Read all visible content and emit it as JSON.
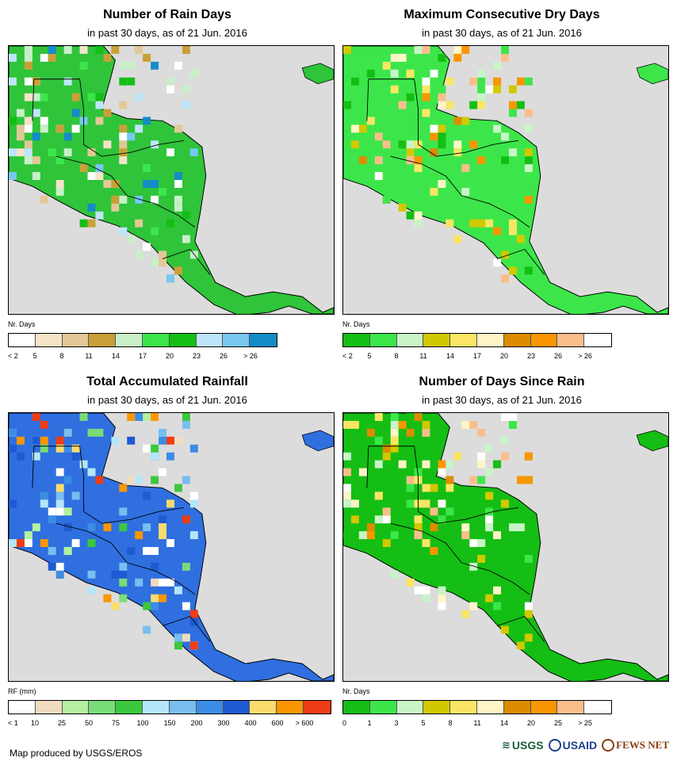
{
  "panels": [
    {
      "title": "Number of Rain Days",
      "subtitle": "in past 30 days, as of 21 Jun. 2016",
      "legend_unit": "Nr. Days",
      "legend_colors": [
        "#ffffff",
        "#f5e4c8",
        "#e2c896",
        "#c9a038",
        "#c8f0c8",
        "#3ce64a",
        "#14be14",
        "#bee6fa",
        "#78c8f0",
        "#148cc8"
      ],
      "legend_ticks": [
        "< 2",
        "5",
        "8",
        "11",
        "14",
        "17",
        "20",
        "23",
        "26",
        "> 26"
      ],
      "land_color": "#2fc43a"
    },
    {
      "title": "Maximum Consecutive Dry Days",
      "subtitle": "in past 30 days, as of 21 Jun. 2016",
      "legend_unit": "Nr. Days",
      "legend_colors": [
        "#14be14",
        "#3ce64a",
        "#c8f5c8",
        "#d2c800",
        "#fae664",
        "#fff5c8",
        "#dc8c00",
        "#fa9600",
        "#fabe8c",
        "#ffffff"
      ],
      "legend_ticks": [
        "< 2",
        "5",
        "8",
        "11",
        "14",
        "17",
        "20",
        "23",
        "26",
        "> 26"
      ],
      "land_color": "#3ce64a"
    },
    {
      "title": "Total Accumulated Rainfall",
      "subtitle": "in past 30 days, as of 21 Jun. 2016",
      "legend_unit": "RF (mm)",
      "legend_colors": [
        "#ffffff",
        "#f0dcbe",
        "#b4f0a0",
        "#78dc78",
        "#3cc83c",
        "#b4e6fa",
        "#78bef0",
        "#3c8ce6",
        "#1e5ad2",
        "#fadc6e",
        "#fa9600",
        "#f03c14"
      ],
      "legend_ticks": [
        "< 1",
        "10",
        "25",
        "50",
        "75",
        "100",
        "150",
        "200",
        "300",
        "400",
        "600",
        "> 600"
      ],
      "land_color": "#2f6fe0"
    },
    {
      "title": "Number of Days Since Rain",
      "subtitle": "in past 30 days, as of 21 Jun. 2016",
      "legend_unit": "Nr. Days",
      "legend_colors": [
        "#14be14",
        "#3ce64a",
        "#c8f5c8",
        "#d2c800",
        "#fae664",
        "#fff5c8",
        "#dc8c00",
        "#fa9600",
        "#fabe8c",
        "#ffffff"
      ],
      "legend_ticks": [
        "0",
        "1",
        "3",
        "5",
        "8",
        "11",
        "14",
        "20",
        "25",
        "> 25"
      ],
      "land_color": "#14be14"
    }
  ],
  "footer": {
    "credit": "Map produced by USGS/EROS",
    "logos": [
      "USGS",
      "USAID",
      "FEWS NET"
    ]
  }
}
